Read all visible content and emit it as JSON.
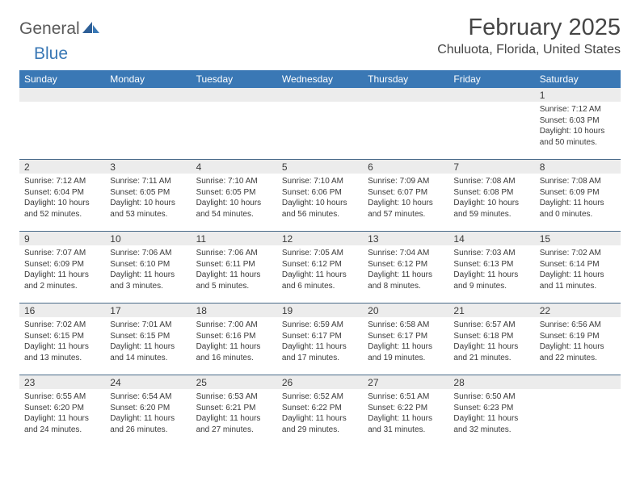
{
  "logo": {
    "part1": "General",
    "part2": "Blue"
  },
  "title": "February 2025",
  "location": "Chuluota, Florida, United States",
  "colors": {
    "header_bg": "#3a78b5",
    "daynum_bg": "#ececec",
    "week_border": "#4a6b8a",
    "text": "#3a3a3a",
    "logo_gray": "#5a5a5a",
    "logo_blue": "#3a78b5"
  },
  "days_of_week": [
    "Sunday",
    "Monday",
    "Tuesday",
    "Wednesday",
    "Thursday",
    "Friday",
    "Saturday"
  ],
  "weeks": [
    [
      {
        "n": "",
        "sr": "",
        "ss": "",
        "dl": ""
      },
      {
        "n": "",
        "sr": "",
        "ss": "",
        "dl": ""
      },
      {
        "n": "",
        "sr": "",
        "ss": "",
        "dl": ""
      },
      {
        "n": "",
        "sr": "",
        "ss": "",
        "dl": ""
      },
      {
        "n": "",
        "sr": "",
        "ss": "",
        "dl": ""
      },
      {
        "n": "",
        "sr": "",
        "ss": "",
        "dl": ""
      },
      {
        "n": "1",
        "sr": "Sunrise: 7:12 AM",
        "ss": "Sunset: 6:03 PM",
        "dl": "Daylight: 10 hours and 50 minutes."
      }
    ],
    [
      {
        "n": "2",
        "sr": "Sunrise: 7:12 AM",
        "ss": "Sunset: 6:04 PM",
        "dl": "Daylight: 10 hours and 52 minutes."
      },
      {
        "n": "3",
        "sr": "Sunrise: 7:11 AM",
        "ss": "Sunset: 6:05 PM",
        "dl": "Daylight: 10 hours and 53 minutes."
      },
      {
        "n": "4",
        "sr": "Sunrise: 7:10 AM",
        "ss": "Sunset: 6:05 PM",
        "dl": "Daylight: 10 hours and 54 minutes."
      },
      {
        "n": "5",
        "sr": "Sunrise: 7:10 AM",
        "ss": "Sunset: 6:06 PM",
        "dl": "Daylight: 10 hours and 56 minutes."
      },
      {
        "n": "6",
        "sr": "Sunrise: 7:09 AM",
        "ss": "Sunset: 6:07 PM",
        "dl": "Daylight: 10 hours and 57 minutes."
      },
      {
        "n": "7",
        "sr": "Sunrise: 7:08 AM",
        "ss": "Sunset: 6:08 PM",
        "dl": "Daylight: 10 hours and 59 minutes."
      },
      {
        "n": "8",
        "sr": "Sunrise: 7:08 AM",
        "ss": "Sunset: 6:09 PM",
        "dl": "Daylight: 11 hours and 0 minutes."
      }
    ],
    [
      {
        "n": "9",
        "sr": "Sunrise: 7:07 AM",
        "ss": "Sunset: 6:09 PM",
        "dl": "Daylight: 11 hours and 2 minutes."
      },
      {
        "n": "10",
        "sr": "Sunrise: 7:06 AM",
        "ss": "Sunset: 6:10 PM",
        "dl": "Daylight: 11 hours and 3 minutes."
      },
      {
        "n": "11",
        "sr": "Sunrise: 7:06 AM",
        "ss": "Sunset: 6:11 PM",
        "dl": "Daylight: 11 hours and 5 minutes."
      },
      {
        "n": "12",
        "sr": "Sunrise: 7:05 AM",
        "ss": "Sunset: 6:12 PM",
        "dl": "Daylight: 11 hours and 6 minutes."
      },
      {
        "n": "13",
        "sr": "Sunrise: 7:04 AM",
        "ss": "Sunset: 6:12 PM",
        "dl": "Daylight: 11 hours and 8 minutes."
      },
      {
        "n": "14",
        "sr": "Sunrise: 7:03 AM",
        "ss": "Sunset: 6:13 PM",
        "dl": "Daylight: 11 hours and 9 minutes."
      },
      {
        "n": "15",
        "sr": "Sunrise: 7:02 AM",
        "ss": "Sunset: 6:14 PM",
        "dl": "Daylight: 11 hours and 11 minutes."
      }
    ],
    [
      {
        "n": "16",
        "sr": "Sunrise: 7:02 AM",
        "ss": "Sunset: 6:15 PM",
        "dl": "Daylight: 11 hours and 13 minutes."
      },
      {
        "n": "17",
        "sr": "Sunrise: 7:01 AM",
        "ss": "Sunset: 6:15 PM",
        "dl": "Daylight: 11 hours and 14 minutes."
      },
      {
        "n": "18",
        "sr": "Sunrise: 7:00 AM",
        "ss": "Sunset: 6:16 PM",
        "dl": "Daylight: 11 hours and 16 minutes."
      },
      {
        "n": "19",
        "sr": "Sunrise: 6:59 AM",
        "ss": "Sunset: 6:17 PM",
        "dl": "Daylight: 11 hours and 17 minutes."
      },
      {
        "n": "20",
        "sr": "Sunrise: 6:58 AM",
        "ss": "Sunset: 6:17 PM",
        "dl": "Daylight: 11 hours and 19 minutes."
      },
      {
        "n": "21",
        "sr": "Sunrise: 6:57 AM",
        "ss": "Sunset: 6:18 PM",
        "dl": "Daylight: 11 hours and 21 minutes."
      },
      {
        "n": "22",
        "sr": "Sunrise: 6:56 AM",
        "ss": "Sunset: 6:19 PM",
        "dl": "Daylight: 11 hours and 22 minutes."
      }
    ],
    [
      {
        "n": "23",
        "sr": "Sunrise: 6:55 AM",
        "ss": "Sunset: 6:20 PM",
        "dl": "Daylight: 11 hours and 24 minutes."
      },
      {
        "n": "24",
        "sr": "Sunrise: 6:54 AM",
        "ss": "Sunset: 6:20 PM",
        "dl": "Daylight: 11 hours and 26 minutes."
      },
      {
        "n": "25",
        "sr": "Sunrise: 6:53 AM",
        "ss": "Sunset: 6:21 PM",
        "dl": "Daylight: 11 hours and 27 minutes."
      },
      {
        "n": "26",
        "sr": "Sunrise: 6:52 AM",
        "ss": "Sunset: 6:22 PM",
        "dl": "Daylight: 11 hours and 29 minutes."
      },
      {
        "n": "27",
        "sr": "Sunrise: 6:51 AM",
        "ss": "Sunset: 6:22 PM",
        "dl": "Daylight: 11 hours and 31 minutes."
      },
      {
        "n": "28",
        "sr": "Sunrise: 6:50 AM",
        "ss": "Sunset: 6:23 PM",
        "dl": "Daylight: 11 hours and 32 minutes."
      },
      {
        "n": "",
        "sr": "",
        "ss": "",
        "dl": ""
      }
    ]
  ]
}
